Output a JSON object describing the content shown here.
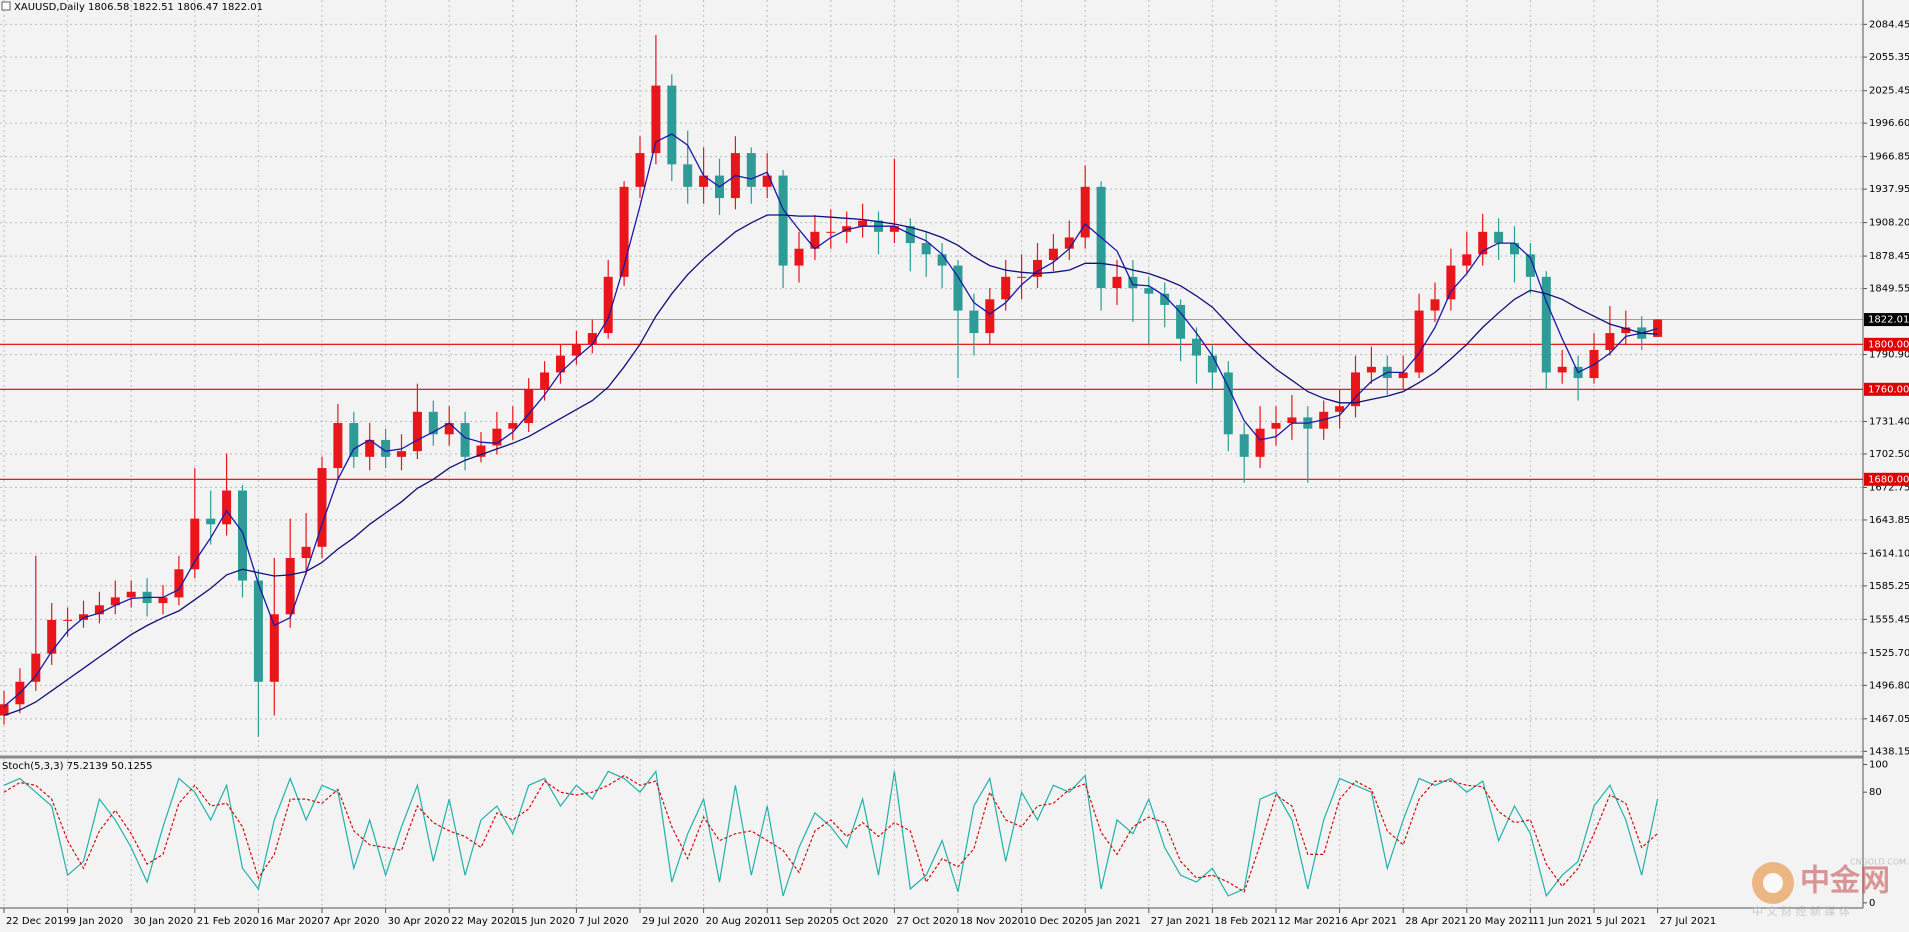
{
  "chart_data": {
    "type": "candlestick",
    "title": "XAUUSD,Daily  1806.58 1822.51 1806.47 1822.01",
    "categories": [
      "22 Dec 2019",
      null,
      null,
      null,
      "9 Jan 2020",
      null,
      null,
      null,
      "30 Jan 2020",
      null,
      null,
      null,
      "21 Feb 2020",
      null,
      null,
      null,
      "16 Mar 2020",
      null,
      null,
      null,
      "7 Apr 2020",
      null,
      null,
      null,
      "30 Apr 2020",
      null,
      null,
      null,
      "22 May 2020",
      null,
      null,
      null,
      "15 Jun 2020",
      null,
      null,
      null,
      "7 Jul 2020",
      null,
      null,
      null,
      "29 Jul 2020",
      null,
      null,
      null,
      "20 Aug 2020",
      null,
      null,
      null,
      "11 Sep 2020",
      null,
      null,
      null,
      "5 Oct 2020",
      null,
      null,
      null,
      "27 Oct 2020",
      null,
      null,
      null,
      "18 Nov 2020",
      null,
      null,
      null,
      "10 Dec 2020",
      null,
      null,
      null,
      "5 Jan 2021",
      null,
      null,
      null,
      "27 Jan 2021",
      null,
      null,
      null,
      "18 Feb 2021",
      null,
      null,
      null,
      "12 Mar 2021",
      null,
      null,
      null,
      "6 Apr 2021",
      null,
      null,
      null,
      "28 Apr 2021",
      null,
      null,
      null,
      "20 May 2021",
      null,
      null,
      null,
      "11 Jun 2021",
      null,
      null,
      null,
      "5 Jul 2021",
      null,
      null,
      null,
      "27 Jul 2021"
    ],
    "open": [
      1470,
      1480,
      1500,
      1525,
      1555,
      1555,
      1560,
      1568,
      1575,
      1580,
      1570,
      1575,
      1600,
      1645,
      1640,
      1670,
      1590,
      1500,
      1560,
      1610,
      1620,
      1690,
      1730,
      1700,
      1715,
      1700,
      1705,
      1740,
      1720,
      1730,
      1700,
      1710,
      1725,
      1730,
      1760,
      1775,
      1790,
      1800,
      1810,
      1860,
      1940,
      1970,
      2030,
      1960,
      1940,
      1950,
      1930,
      1970,
      1940,
      1950,
      1870,
      1885,
      1900,
      1900,
      1905,
      1910,
      1900,
      1905,
      1890,
      1880,
      1870,
      1830,
      1810,
      1840,
      1860,
      1860,
      1875,
      1885,
      1895,
      1940,
      1850,
      1860,
      1850,
      1845,
      1835,
      1805,
      1790,
      1775,
      1720,
      1700,
      1725,
      1730,
      1735,
      1725,
      1740,
      1745,
      1775,
      1780,
      1770,
      1775,
      1830,
      1840,
      1870,
      1880,
      1900,
      1890,
      1880,
      1860,
      1775,
      1780,
      1770,
      1795,
      1810,
      1815,
      1806.58
    ],
    "high": [
      1492,
      1512,
      1612,
      1570,
      1566,
      1572,
      1580,
      1590,
      1590,
      1592,
      1586,
      1612,
      1690,
      1670,
      1703,
      1675,
      1600,
      1610,
      1645,
      1650,
      1700,
      1747,
      1740,
      1730,
      1725,
      1720,
      1765,
      1750,
      1745,
      1740,
      1722,
      1740,
      1745,
      1770,
      1785,
      1800,
      1812,
      1822,
      1875,
      1945,
      1985,
      2075,
      2040,
      1990,
      1975,
      1965,
      1985,
      1975,
      1970,
      1955,
      1900,
      1915,
      1920,
      1918,
      1925,
      1918,
      1965,
      1912,
      1900,
      1890,
      1875,
      1845,
      1850,
      1875,
      1880,
      1890,
      1898,
      1910,
      1959,
      1945,
      1875,
      1875,
      1860,
      1855,
      1840,
      1815,
      1800,
      1785,
      1730,
      1745,
      1745,
      1755,
      1745,
      1750,
      1760,
      1790,
      1798,
      1790,
      1790,
      1845,
      1855,
      1885,
      1900,
      1916,
      1912,
      1905,
      1890,
      1865,
      1795,
      1790,
      1810,
      1834,
      1830,
      1825,
      1822.51
    ],
    "low": [
      1462,
      1472,
      1492,
      1515,
      1540,
      1548,
      1552,
      1560,
      1566,
      1558,
      1560,
      1568,
      1592,
      1622,
      1630,
      1575,
      1451,
      1470,
      1548,
      1595,
      1610,
      1680,
      1690,
      1688,
      1690,
      1688,
      1698,
      1710,
      1710,
      1688,
      1695,
      1702,
      1715,
      1722,
      1750,
      1765,
      1782,
      1792,
      1805,
      1852,
      1930,
      1960,
      1945,
      1925,
      1925,
      1915,
      1920,
      1925,
      1930,
      1850,
      1855,
      1875,
      1885,
      1890,
      1895,
      1880,
      1890,
      1865,
      1860,
      1850,
      1770,
      1790,
      1800,
      1830,
      1840,
      1850,
      1865,
      1875,
      1885,
      1830,
      1835,
      1820,
      1800,
      1815,
      1785,
      1765,
      1760,
      1705,
      1677,
      1690,
      1710,
      1715,
      1677,
      1715,
      1725,
      1735,
      1765,
      1755,
      1760,
      1770,
      1820,
      1830,
      1862,
      1870,
      1875,
      1855,
      1845,
      1760,
      1765,
      1750,
      1765,
      1790,
      1800,
      1795,
      1806.47
    ],
    "close": [
      1480,
      1500,
      1525,
      1555,
      1555,
      1560,
      1568,
      1575,
      1580,
      1570,
      1575,
      1600,
      1645,
      1640,
      1670,
      1590,
      1500,
      1560,
      1610,
      1620,
      1690,
      1730,
      1700,
      1715,
      1700,
      1705,
      1740,
      1720,
      1730,
      1700,
      1710,
      1725,
      1730,
      1760,
      1775,
      1790,
      1800,
      1810,
      1860,
      1940,
      1970,
      2030,
      1960,
      1940,
      1950,
      1930,
      1970,
      1940,
      1950,
      1870,
      1885,
      1900,
      1900,
      1905,
      1910,
      1900,
      1905,
      1890,
      1880,
      1870,
      1830,
      1810,
      1840,
      1860,
      1860,
      1875,
      1885,
      1895,
      1940,
      1850,
      1860,
      1850,
      1845,
      1835,
      1805,
      1790,
      1775,
      1720,
      1700,
      1725,
      1730,
      1735,
      1725,
      1740,
      1745,
      1775,
      1780,
      1770,
      1775,
      1830,
      1840,
      1870,
      1880,
      1900,
      1890,
      1880,
      1860,
      1775,
      1780,
      1770,
      1795,
      1810,
      1815,
      1805,
      1822.01
    ],
    "up_color": "#e8151b",
    "down_color": "#2e9b96",
    "ylim": [
      1434.9,
      2106.1
    ],
    "yticks": [
      2084.45,
      2055.35,
      2025.45,
      {
        "value": 1996.6,
        "label": "1996.60"
      },
      1966.85,
      1937.95,
      {
        "value": 1908.2,
        "label": "1908.20"
      },
      1878.45,
      1849.55,
      {
        "value": 1790.9,
        "label": "1790.90"
      },
      {
        "value": 1731.4,
        "label": "1731.40"
      },
      {
        "value": 1702.5,
        "label": "1702.50"
      },
      1672.75,
      1643.85,
      {
        "value": 1614.1,
        "label": "1614.10"
      },
      1585.25,
      1555.45,
      {
        "value": 1525.7,
        "label": "1525.70"
      },
      {
        "value": 1496.8,
        "label": "1496.80"
      },
      1467.05,
      1438.15
    ],
    "grid": true,
    "indicators": [
      {
        "color": "#1a1aa8",
        "values": [
          1478,
          1490,
          1505,
          1527,
          1545,
          1557,
          1561,
          1568,
          1574,
          1575,
          1575,
          1582,
          1607,
          1628,
          1652,
          1633,
          1587,
          1550,
          1557,
          1597,
          1640,
          1680,
          1707,
          1715,
          1705,
          1707,
          1715,
          1722,
          1730,
          1717,
          1713,
          1712,
          1722,
          1738,
          1755,
          1775,
          1788,
          1800,
          1823,
          1870,
          1923,
          1980,
          1987,
          1977,
          1950,
          1940,
          1950,
          1947,
          1953,
          1920,
          1902,
          1885,
          1895,
          1902,
          1905,
          1905,
          1905,
          1898,
          1892,
          1880,
          1860,
          1837,
          1827,
          1837,
          1853,
          1865,
          1873,
          1885,
          1907,
          1895,
          1883,
          1853,
          1852,
          1843,
          1828,
          1810,
          1790,
          1762,
          1732,
          1715,
          1718,
          1730,
          1730,
          1733,
          1737,
          1753,
          1767,
          1775,
          1775,
          1792,
          1815,
          1847,
          1863,
          1883,
          1890,
          1890,
          1877,
          1838,
          1805,
          1775,
          1782,
          1792,
          1807,
          1810,
          1814
        ]
      },
      {
        "color": "#10107a",
        "values": [
          1470,
          1475,
          1482,
          1492,
          1502,
          1512,
          1522,
          1532,
          1542,
          1550,
          1557,
          1563,
          1573,
          1583,
          1595,
          1600,
          1597,
          1594,
          1595,
          1598,
          1606,
          1618,
          1628,
          1640,
          1650,
          1660,
          1672,
          1680,
          1690,
          1697,
          1702,
          1707,
          1712,
          1718,
          1726,
          1734,
          1742,
          1750,
          1762,
          1780,
          1800,
          1825,
          1845,
          1862,
          1876,
          1888,
          1900,
          1908,
          1915,
          1915,
          1914,
          1914,
          1913,
          1912,
          1911,
          1909,
          1907,
          1904,
          1900,
          1895,
          1888,
          1878,
          1870,
          1866,
          1864,
          1863,
          1864,
          1866,
          1872,
          1872,
          1870,
          1866,
          1863,
          1858,
          1852,
          1843,
          1833,
          1818,
          1803,
          1790,
          1778,
          1768,
          1758,
          1752,
          1748,
          1748,
          1751,
          1754,
          1758,
          1766,
          1775,
          1787,
          1800,
          1815,
          1828,
          1840,
          1848,
          1845,
          1840,
          1832,
          1825,
          1818,
          1814,
          1810,
          1809
        ]
      }
    ],
    "levels": [
      {
        "value": 1800,
        "label": "1800.00"
      },
      {
        "value": 1760,
        "label": "1760.00"
      },
      {
        "value": 1680,
        "label": "1680.00"
      }
    ],
    "level_color": "#e00000",
    "last_price": {
      "value": 1822.01,
      "label": "1822.01"
    },
    "oscillator": {
      "type": "line",
      "label": "Stoch(5,3,3) 75.2139 50.1255",
      "ylim": [
        -3,
        104
      ],
      "yticks": [
        100,
        80,
        0
      ],
      "series": [
        {
          "color": "#20b2aa",
          "line_style": "solid",
          "values": [
            85,
            90,
            80,
            70,
            20,
            30,
            75,
            60,
            40,
            15,
            55,
            90,
            80,
            60,
            85,
            25,
            10,
            60,
            90,
            60,
            85,
            80,
            25,
            60,
            20,
            55,
            85,
            30,
            75,
            20,
            60,
            70,
            50,
            85,
            90,
            70,
            85,
            75,
            95,
            90,
            80,
            95,
            15,
            50,
            75,
            15,
            85,
            20,
            70,
            5,
            40,
            65,
            55,
            40,
            75,
            20,
            95,
            10,
            20,
            45,
            8,
            70,
            90,
            30,
            80,
            60,
            85,
            80,
            92,
            10,
            60,
            50,
            75,
            40,
            20,
            15,
            25,
            5,
            10,
            75,
            80,
            60,
            10,
            60,
            90,
            85,
            80,
            25,
            60,
            90,
            85,
            90,
            80,
            88,
            45,
            70,
            50,
            5,
            20,
            30,
            70,
            85,
            60,
            20,
            75.2139
          ]
        },
        {
          "color": "#d01010",
          "line_style": "dashed",
          "values": [
            80,
            87,
            85,
            75,
            45,
            25,
            52,
            67,
            50,
            28,
            35,
            72,
            85,
            70,
            72,
            55,
            18,
            35,
            75,
            75,
            72,
            82,
            52,
            42,
            40,
            38,
            70,
            58,
            52,
            48,
            40,
            65,
            60,
            68,
            88,
            80,
            78,
            80,
            85,
            92,
            85,
            88,
            55,
            32,
            62,
            45,
            50,
            52,
            45,
            38,
            22,
            52,
            60,
            48,
            58,
            48,
            58,
            52,
            15,
            32,
            26,
            39,
            80,
            60,
            55,
            70,
            72,
            82,
            86,
            51,
            35,
            55,
            62,
            58,
            30,
            18,
            20,
            15,
            8,
            42,
            78,
            70,
            35,
            35,
            75,
            88,
            82,
            52,
            42,
            75,
            88,
            88,
            85,
            84,
            66,
            58,
            60,
            28,
            12,
            25,
            50,
            78,
            72,
            40,
            50.1255
          ]
        }
      ]
    }
  },
  "watermark": {
    "text": "中金网",
    "site": "CNGOLD.COM.CN",
    "sub": "中 文 财 经 新 媒 体"
  }
}
